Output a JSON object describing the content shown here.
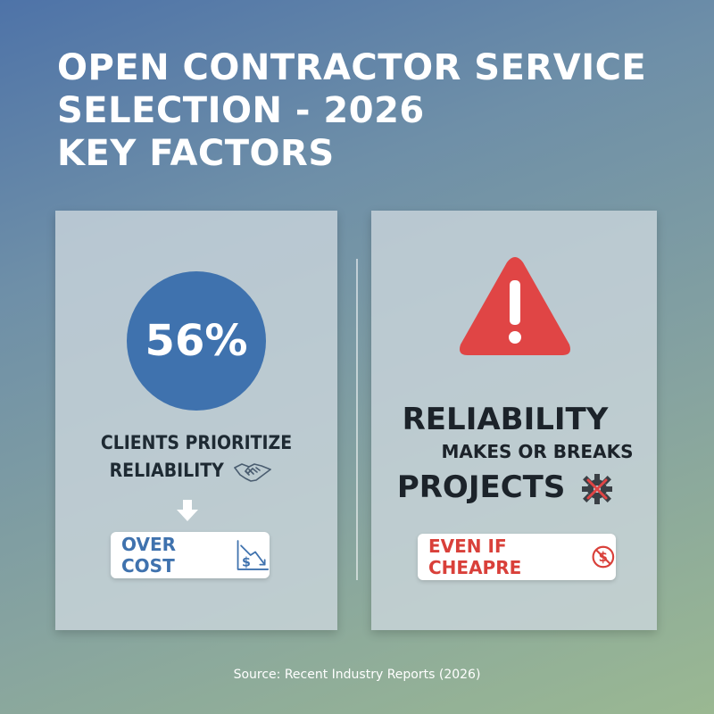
{
  "title": {
    "line1": "OPEN CONTRACTOR SERVICE",
    "line2": "SELECTION - 2026",
    "line3": "KEY FACTORS"
  },
  "left_panel": {
    "stat": "56%",
    "caption_line1": "CLIENTS PRIORITIZE",
    "caption_line2": "RELIABILITY",
    "pill_label": "OVER COST",
    "colors": {
      "circle": "#3f72ae",
      "accent": "#3f72ae"
    },
    "icons": [
      "handshake-icon",
      "arrow-down-icon",
      "dollar-down-chart-icon"
    ]
  },
  "right_panel": {
    "heading_line1": "RELIABILITY",
    "heading_line2": "MAKES OR BREAKS",
    "heading_line3": "PROJECTS",
    "pill_label": "EVEN IF CHEAPRE",
    "colors": {
      "warning": "#e04545",
      "accent": "#d9403a"
    },
    "icons": [
      "warning-triangle-icon",
      "broken-gear-icon",
      "no-dollar-icon"
    ]
  },
  "source": "Source: Recent Industry Reports (2026)"
}
